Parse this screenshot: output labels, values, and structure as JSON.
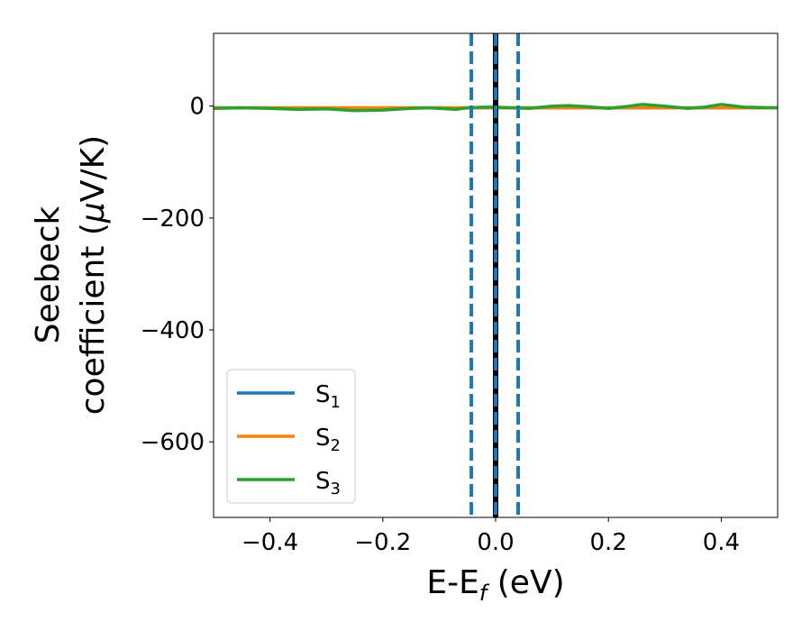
{
  "chart_data": {
    "type": "line",
    "xlabel": {
      "main": "E-E",
      "sub": "f",
      "suffix": " (eV)"
    },
    "ylabel": {
      "line1": "Seebeck",
      "line2_prefix": "coefficient  (",
      "line2_mu": "μ",
      "line2_suffix": "V/K)"
    },
    "xlim": [
      -0.5,
      0.5
    ],
    "ylim": [
      -735,
      130
    ],
    "xticks": [
      -0.4,
      -0.2,
      0.0,
      0.2,
      0.4
    ],
    "xtick_labels": [
      "−0.4",
      "−0.2",
      "0.0",
      "0.2",
      "0.4"
    ],
    "yticks": [
      0,
      -200,
      -400,
      -600
    ],
    "ytick_labels": [
      "0",
      "−200",
      "−400",
      "−600"
    ],
    "grid": false,
    "legend_position": "lower-left",
    "series": [
      {
        "name": "S",
        "subscript": "1",
        "color": "#1f77b4",
        "x": [
          -0.5,
          0.5
        ],
        "y": [
          -3,
          -3
        ]
      },
      {
        "name": "S",
        "subscript": "2",
        "color": "#ff7f0e",
        "x": [
          -0.5,
          0.5
        ],
        "y": [
          -3,
          -3
        ]
      },
      {
        "name": "S",
        "subscript": "3",
        "color": "#2ca02c",
        "x": [
          -0.5,
          -0.45,
          -0.4,
          -0.35,
          -0.3,
          -0.25,
          -0.2,
          -0.15,
          -0.12,
          -0.1,
          -0.07,
          -0.05,
          -0.02,
          0.0,
          0.03,
          0.06,
          0.1,
          0.13,
          0.16,
          0.2,
          0.23,
          0.26,
          0.3,
          0.34,
          0.37,
          0.4,
          0.44,
          0.5
        ],
        "y": [
          -4,
          -3,
          -4,
          -6,
          -5,
          -8,
          -7,
          -4,
          -3,
          -4,
          -6,
          -3,
          -2,
          -2,
          -3,
          -4,
          0,
          1,
          -1,
          -4,
          -1,
          3,
          0,
          -4,
          -2,
          3,
          -2,
          -3
        ]
      }
    ],
    "vertical_lines": [
      {
        "x": -0.043,
        "style": "dashed",
        "color": "#1f77b4"
      },
      {
        "x": 0.0,
        "style": "solid-black",
        "color": "#000000"
      },
      {
        "x": 0.0,
        "style": "dashed",
        "color": "#1f77b4"
      },
      {
        "x": 0.04,
        "style": "dashed",
        "color": "#1f77b4"
      }
    ]
  }
}
